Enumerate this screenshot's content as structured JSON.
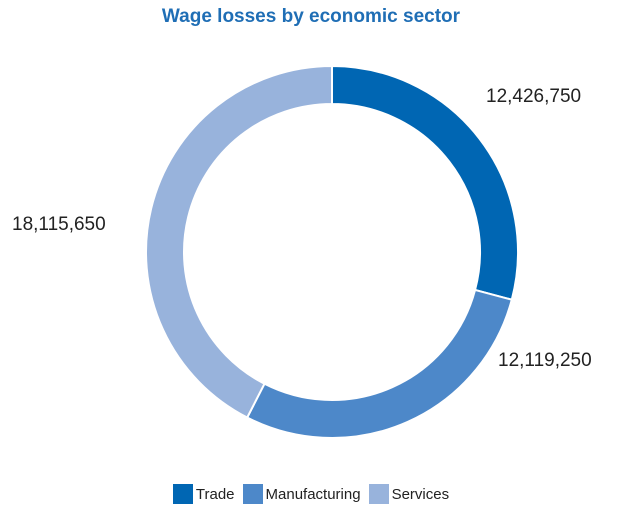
{
  "chart_data": {
    "type": "pie",
    "title": "Wage losses by economic sector",
    "categories": [
      "Trade",
      "Manufacturing",
      "Services"
    ],
    "values": [
      12426750,
      12119250,
      18115650
    ],
    "value_labels": [
      "12,426,750",
      "12,119,250",
      "18,115,650"
    ],
    "colors": [
      "#0066b3",
      "#4d88c9",
      "#98b3dc"
    ],
    "donut": true,
    "legend_position": "bottom"
  }
}
